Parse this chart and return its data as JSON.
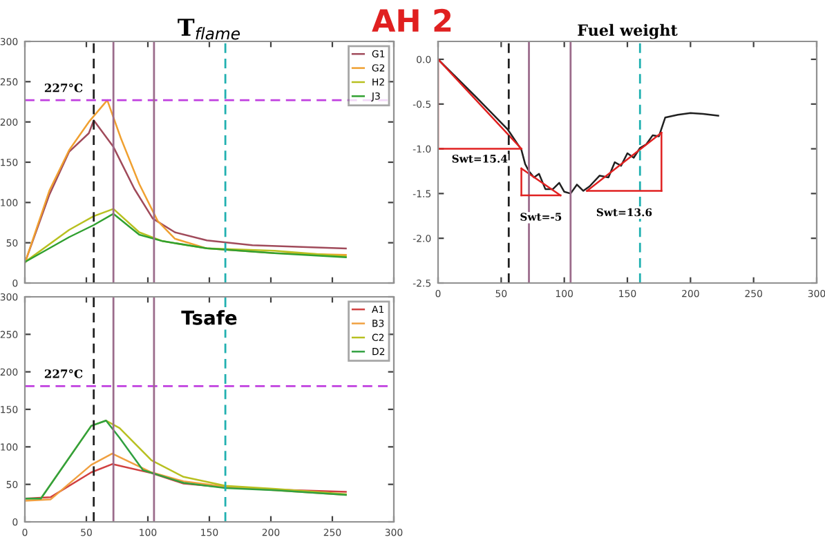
{
  "chart_data": [
    {
      "type": "other",
      "title": "AH 2"
    },
    {
      "type": "line",
      "title": "T$_{flame}$",
      "xlim": [
        0,
        300
      ],
      "ylim": [
        0,
        300
      ],
      "xticks": [
        0,
        50,
        100,
        150,
        200,
        250,
        300
      ],
      "yticks": [
        0,
        50,
        100,
        150,
        200,
        250,
        300
      ],
      "tick_labels": "y",
      "legend": "top right",
      "series": [
        {
          "name": "G1",
          "color": "#a04a5a",
          "x": [
            0,
            20,
            36,
            52,
            56,
            72,
            89,
            104,
            122,
            148,
            185,
            261
          ],
          "values": [
            25,
            110,
            163,
            186,
            202,
            169,
            117,
            80,
            63,
            53,
            47,
            43
          ]
        },
        {
          "name": "G2",
          "color": "#f0a030",
          "x": [
            0,
            20,
            36,
            52,
            67,
            78,
            93,
            108,
            122,
            148,
            203,
            261
          ],
          "values": [
            25,
            115,
            165,
            200,
            227,
            180,
            123,
            77,
            55,
            43,
            37,
            35
          ]
        },
        {
          "name": "H2",
          "color": "#b8c020",
          "x": [
            0,
            36,
            56,
            72,
            93,
            112,
            148,
            203,
            261
          ],
          "values": [
            26,
            66,
            83,
            92,
            63,
            52,
            43,
            40,
            33
          ]
        },
        {
          "name": "J3",
          "color": "#30a030",
          "x": [
            0,
            36,
            56,
            72,
            93,
            112,
            148,
            203,
            261
          ],
          "values": [
            26,
            57,
            72,
            86,
            60,
            52,
            43,
            37,
            32
          ]
        }
      ],
      "ref_lines": [
        {
          "axis": "y",
          "value": 227,
          "label": "227°C",
          "color": "#c040e0",
          "line_style": "dashed"
        },
        {
          "axis": "x",
          "value": 56,
          "color": "#202020",
          "line_style": "dashed"
        },
        {
          "axis": "x",
          "value": 72,
          "color": "#9b6b8b",
          "line_style": "solid"
        },
        {
          "axis": "x",
          "value": 105,
          "color": "#9b6b8b",
          "line_style": "solid"
        },
        {
          "axis": "x",
          "value": 163,
          "color": "#20b0b0",
          "line_style": "dashed"
        }
      ]
    },
    {
      "type": "line",
      "title": "Tsafe",
      "xlim": [
        0,
        300
      ],
      "ylim": [
        0,
        300
      ],
      "xticks": [
        0,
        50,
        100,
        150,
        200,
        250,
        300
      ],
      "yticks": [
        0,
        50,
        100,
        150,
        200,
        250,
        300
      ],
      "legend": "top right",
      "series": [
        {
          "name": "A1",
          "color": "#d04040",
          "x": [
            0,
            21,
            54,
            71,
            103,
            129,
            163,
            204,
            261
          ],
          "values": [
            31,
            33,
            66,
            77,
            65,
            51,
            46,
            43,
            40
          ]
        },
        {
          "name": "B3",
          "color": "#f0a040",
          "x": [
            0,
            21,
            54,
            71,
            103,
            129,
            163,
            204,
            261
          ],
          "values": [
            28,
            30,
            76,
            91,
            66,
            54,
            47,
            42,
            36
          ]
        },
        {
          "name": "C2",
          "color": "#b8c020",
          "x": [
            0,
            13,
            54,
            66,
            77,
            103,
            129,
            163,
            204,
            261
          ],
          "values": [
            31,
            31,
            128,
            135,
            125,
            82,
            60,
            48,
            44,
            37
          ]
        },
        {
          "name": "D2",
          "color": "#30a040",
          "x": [
            0,
            13,
            54,
            66,
            77,
            96,
            129,
            163,
            204,
            261
          ],
          "values": [
            31,
            31,
            128,
            135,
            112,
            69,
            52,
            45,
            42,
            36
          ]
        }
      ],
      "ref_lines": [
        {
          "axis": "y",
          "value": 181,
          "label": "227°C",
          "color": "#c040e0",
          "line_style": "dashed"
        },
        {
          "axis": "x",
          "value": 56,
          "color": "#202020",
          "line_style": "dashed"
        },
        {
          "axis": "x",
          "value": 72,
          "color": "#9b6b8b",
          "line_style": "solid"
        },
        {
          "axis": "x",
          "value": 105,
          "color": "#9b6b8b",
          "line_style": "solid"
        },
        {
          "axis": "x",
          "value": 163,
          "color": "#20b0b0",
          "line_style": "dashed"
        }
      ]
    },
    {
      "type": "line",
      "title": "Fuel weight",
      "xlim": [
        0,
        300
      ],
      "ylim": [
        -2.5,
        0.2
      ],
      "xticks": [
        0,
        50,
        100,
        150,
        200,
        250,
        300
      ],
      "yticks": [
        {
          "value": 0,
          "label": "0.0"
        },
        {
          "value": -0.5,
          "label": "-0.5"
        },
        {
          "value": -1,
          "label": "-1.0"
        },
        {
          "value": -1.5,
          "label": "-1.5"
        },
        {
          "value": -2,
          "label": "-2.0"
        },
        {
          "value": -2.5,
          "label": "-2.5"
        }
      ],
      "series": [
        {
          "color": "#202020",
          "x": [
            0,
            30,
            55,
            66,
            69,
            72,
            76,
            80,
            85,
            91,
            96,
            100,
            105,
            110,
            115,
            120,
            128,
            135,
            140,
            145,
            150,
            155,
            160,
            165,
            170,
            175,
            180,
            190,
            200,
            210,
            222
          ],
          "values": [
            0,
            -0.42,
            -0.78,
            -1.01,
            -1.17,
            -1.25,
            -1.32,
            -1.28,
            -1.45,
            -1.45,
            -1.38,
            -1.48,
            -1.5,
            -1.4,
            -1.47,
            -1.42,
            -1.3,
            -1.32,
            -1.15,
            -1.19,
            -1.05,
            -1.1,
            -0.99,
            -0.95,
            -0.85,
            -0.86,
            -0.65,
            -0.62,
            -0.6,
            -0.61,
            -0.63
          ]
        },
        {
          "color": "#e02020",
          "x": [
            0,
            66
          ],
          "values": [
            0,
            -1
          ]
        },
        {
          "color": "#e02020",
          "x": [
            66,
            97
          ],
          "values": [
            -1.22,
            -1.52
          ]
        },
        {
          "color": "#e02020",
          "x": [
            118,
            177
          ],
          "values": [
            -1.47,
            -0.82
          ]
        }
      ],
      "annotations": [
        "Swt=15.4",
        "Swt=-5",
        "Swt=13.6"
      ],
      "ref_lines": [
        {
          "axis": "x",
          "value": 56,
          "color": "#202020",
          "line_style": "dashed"
        },
        {
          "axis": "x",
          "value": 72,
          "color": "#9b6b8b",
          "line_style": "solid"
        },
        {
          "axis": "x",
          "value": 105,
          "color": "#9b6b8b",
          "line_style": "solid"
        },
        {
          "axis": "x",
          "value": 160,
          "color": "#20b0b0",
          "line_style": "dashed"
        }
      ]
    }
  ]
}
